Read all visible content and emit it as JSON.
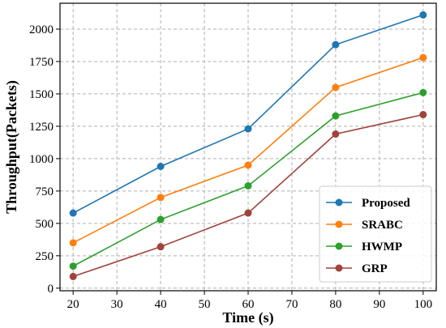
{
  "chart_data": {
    "type": "line",
    "xlabel": "Time (s)",
    "ylabel": "Throughput(Packets)",
    "x": [
      20,
      40,
      60,
      80,
      100
    ],
    "xticks": [
      20,
      30,
      40,
      50,
      60,
      70,
      80,
      90,
      100
    ],
    "yticks": [
      0,
      250,
      500,
      750,
      1000,
      1250,
      1500,
      1750,
      2000
    ],
    "xlim": [
      17,
      103
    ],
    "ylim": [
      -20,
      2200
    ],
    "grid": true,
    "legend_position": "lower-right",
    "series": [
      {
        "name": "Proposed",
        "color": "#1f77b4",
        "values": [
          580,
          940,
          1230,
          1880,
          2110
        ]
      },
      {
        "name": "SRABC",
        "color": "#ff7f0e",
        "values": [
          350,
          700,
          950,
          1550,
          1780
        ]
      },
      {
        "name": "HWMP",
        "color": "#2ca02c",
        "values": [
          170,
          530,
          790,
          1330,
          1510
        ]
      },
      {
        "name": "GRP",
        "color": "#a0433c",
        "values": [
          90,
          320,
          580,
          1190,
          1340
        ]
      }
    ]
  }
}
